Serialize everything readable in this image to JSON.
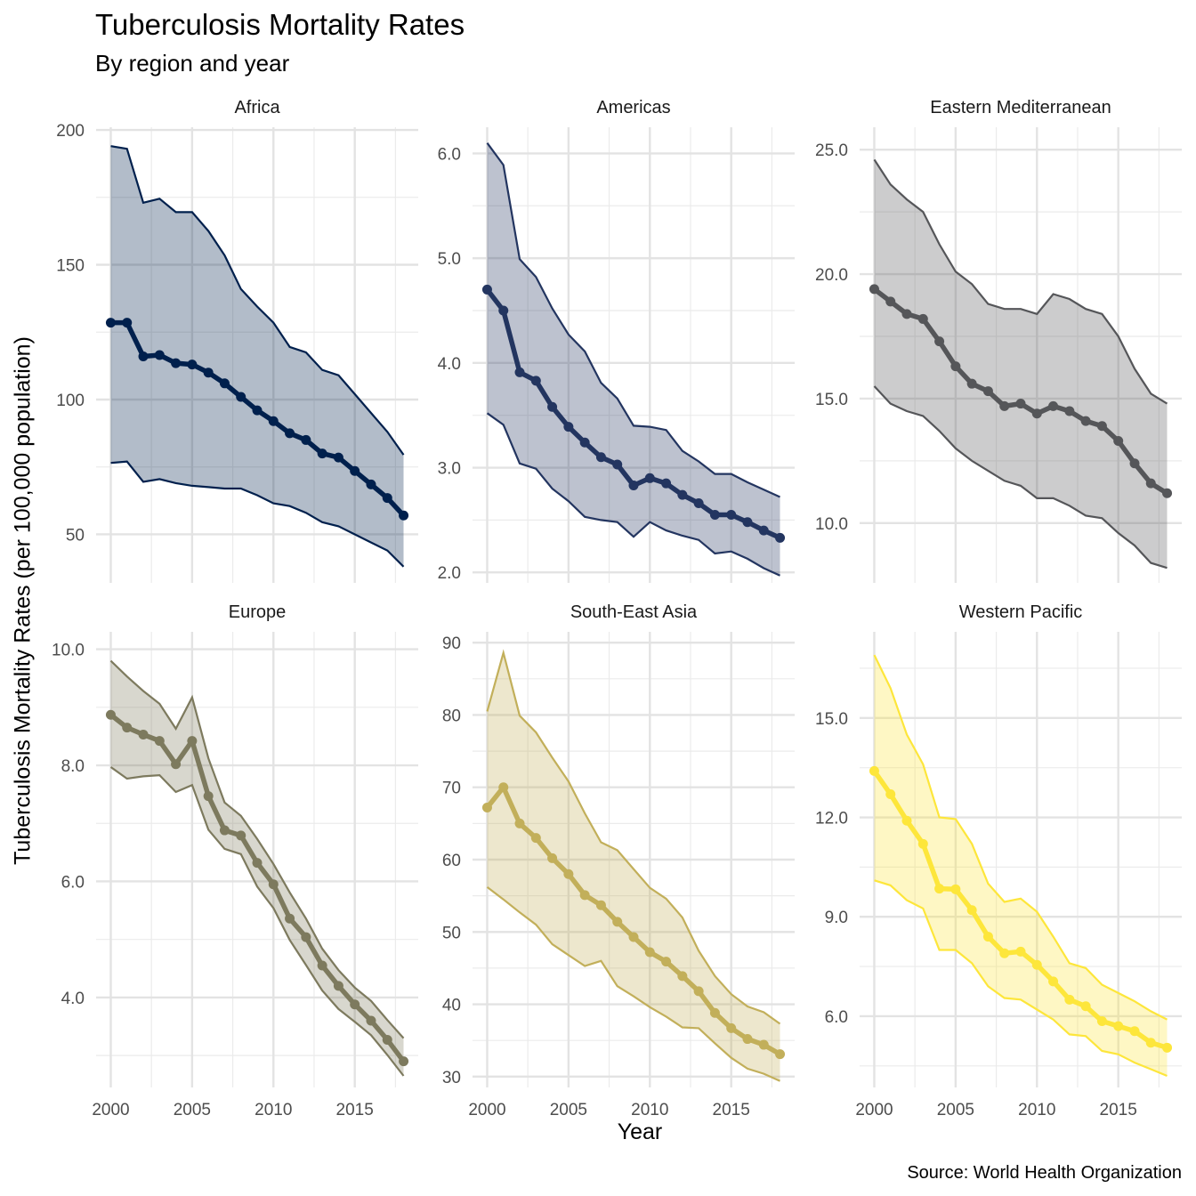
{
  "chart_data": {
    "type": "line",
    "subtype": "faceted-line-with-ribbon",
    "title": "Tuberculosis Mortality Rates",
    "subtitle": "By region and year",
    "xlabel": "Year",
    "ylabel": "Tuberculosis Mortality Rates (per 100,000 population)",
    "caption": "Source: World Health Organization",
    "grid": true,
    "legend": "none",
    "x": [
      2000,
      2001,
      2002,
      2003,
      2004,
      2005,
      2006,
      2007,
      2008,
      2009,
      2010,
      2011,
      2012,
      2013,
      2014,
      2015,
      2016,
      2017,
      2018
    ],
    "x_ticks": [
      "2000",
      "2005",
      "2010",
      "2015"
    ],
    "x_tick_values": [
      2000,
      2005,
      2010,
      2015
    ],
    "facets": [
      {
        "name": "Africa",
        "color": "#00204D",
        "fill": "#B4BBC8",
        "ylim": [
          32,
          201
        ],
        "y_ticks": [
          "50",
          "100",
          "150",
          "200"
        ],
        "y_tick_values": [
          50,
          100,
          150,
          200
        ],
        "y_minor": [
          75,
          125,
          175
        ],
        "series": [
          {
            "name": "mortality",
            "values": [
              128.5,
              128.5,
              116,
              116.5,
              113.5,
              113,
              110,
              106,
              101,
              96,
              92,
              87.5,
              85,
              80,
              78.5,
              73.5,
              68.5,
              63.5,
              57
            ]
          },
          {
            "name": "upper",
            "values": [
              194,
              193,
              173,
              174.5,
              169.5,
              169.5,
              162.5,
              153.5,
              141,
              134.5,
              128.5,
              119.5,
              117.5,
              111,
              109,
              102,
              95,
              88,
              79.5
            ]
          },
          {
            "name": "lower",
            "values": [
              76.5,
              77,
              69.5,
              70.5,
              69,
              68,
              67.5,
              67,
              67,
              64.5,
              61.5,
              60.5,
              58,
              54.5,
              53,
              50,
              47,
              44,
              38
            ]
          }
        ]
      },
      {
        "name": "Americas",
        "color": "#233560",
        "fill": "#BCC2CE",
        "ylim": [
          1.9,
          6.25
        ],
        "y_ticks": [
          "2.0",
          "3.0",
          "4.0",
          "5.0",
          "6.0"
        ],
        "y_tick_values": [
          2,
          3,
          4,
          5,
          6
        ],
        "y_minor": [
          2.5,
          3.5,
          4.5,
          5.5
        ],
        "series": [
          {
            "name": "mortality",
            "values": [
              4.7,
              4.5,
              3.91,
              3.83,
              3.58,
              3.39,
              3.24,
              3.1,
              3.03,
              2.83,
              2.9,
              2.85,
              2.74,
              2.66,
              2.55,
              2.55,
              2.48,
              2.4,
              2.33
            ]
          },
          {
            "name": "upper",
            "values": [
              6.1,
              5.89,
              4.99,
              4.82,
              4.52,
              4.27,
              4.11,
              3.81,
              3.66,
              3.4,
              3.39,
              3.36,
              3.16,
              3.06,
              2.94,
              2.94,
              2.86,
              2.79,
              2.72
            ]
          },
          {
            "name": "lower",
            "values": [
              3.52,
              3.41,
              3.04,
              2.99,
              2.8,
              2.68,
              2.53,
              2.5,
              2.48,
              2.34,
              2.48,
              2.4,
              2.35,
              2.31,
              2.18,
              2.2,
              2.13,
              2.04,
              1.97
            ]
          }
        ]
      },
      {
        "name": "Eastern Mediterranean",
        "color": "#555659",
        "fill": "#CACBCC",
        "ylim": [
          7.6,
          25.9
        ],
        "y_ticks": [
          "10.0",
          "15.0",
          "20.0",
          "25.0"
        ],
        "y_tick_values": [
          10,
          15,
          20,
          25
        ],
        "y_minor": [
          7.5,
          12.5,
          17.5,
          22.5
        ],
        "series": [
          {
            "name": "mortality",
            "values": [
              19.4,
              18.9,
              18.4,
              18.2,
              17.3,
              16.3,
              15.6,
              15.3,
              14.7,
              14.8,
              14.4,
              14.7,
              14.5,
              14.1,
              13.9,
              13.3,
              12.4,
              11.6,
              11.2
            ]
          },
          {
            "name": "upper",
            "values": [
              24.6,
              23.6,
              23.0,
              22.5,
              21.2,
              20.1,
              19.6,
              18.8,
              18.6,
              18.6,
              18.4,
              19.2,
              19.0,
              18.6,
              18.4,
              17.5,
              16.2,
              15.2,
              14.8
            ]
          },
          {
            "name": "lower",
            "values": [
              15.5,
              14.8,
              14.5,
              14.3,
              13.7,
              13.0,
              12.5,
              12.1,
              11.7,
              11.5,
              11.0,
              11.0,
              10.7,
              10.3,
              10.2,
              9.6,
              9.1,
              8.4,
              8.2
            ]
          }
        ]
      },
      {
        "name": "Europe",
        "color": "#7D7A5E",
        "fill": "#DAD8D0",
        "ylim": [
          2.45,
          10.3
        ],
        "y_ticks": [
          "4.0",
          "6.0",
          "8.0",
          "10.0"
        ],
        "y_tick_values": [
          4,
          6,
          8,
          10
        ],
        "y_minor": [
          3,
          5,
          7,
          9
        ],
        "series": [
          {
            "name": "mortality",
            "values": [
              8.87,
              8.65,
              8.53,
              8.42,
              8.02,
              8.42,
              7.47,
              6.88,
              6.79,
              6.32,
              5.95,
              5.36,
              5.04,
              4.55,
              4.2,
              3.88,
              3.6,
              3.27,
              2.9
            ]
          },
          {
            "name": "upper",
            "values": [
              9.8,
              9.53,
              9.28,
              9.06,
              8.63,
              9.17,
              8.12,
              7.36,
              7.13,
              6.73,
              6.3,
              5.81,
              5.36,
              4.84,
              4.47,
              4.17,
              3.94,
              3.61,
              3.3
            ]
          },
          {
            "name": "lower",
            "values": [
              7.97,
              7.77,
              7.81,
              7.83,
              7.54,
              7.66,
              6.89,
              6.56,
              6.47,
              5.91,
              5.54,
              4.99,
              4.56,
              4.12,
              3.8,
              3.58,
              3.35,
              3.01,
              2.65
            ]
          }
        ]
      },
      {
        "name": "South-East Asia",
        "color": "#C2AF5A",
        "fill": "#EBE5CA",
        "ylim": [
          28.5,
          91.5
        ],
        "y_ticks": [
          "30",
          "40",
          "50",
          "60",
          "70",
          "80",
          "90"
        ],
        "y_tick_values": [
          30,
          40,
          50,
          60,
          70,
          80,
          90
        ],
        "y_minor": [
          35,
          45,
          55,
          65,
          75,
          85
        ],
        "series": [
          {
            "name": "mortality",
            "values": [
              67.2,
              70.0,
              65.0,
              63.0,
              60.2,
              58.0,
              55.1,
              53.7,
              51.4,
              49.3,
              47.2,
              45.9,
              43.9,
              41.8,
              38.8,
              36.7,
              35.2,
              34.4,
              33.1
            ]
          },
          {
            "name": "upper",
            "values": [
              80.5,
              88.6,
              79.9,
              77.6,
              74.1,
              70.8,
              66.4,
              62.4,
              61.3,
              58.7,
              56.1,
              54.6,
              52.0,
              47.4,
              43.9,
              41.4,
              39.7,
              38.9,
              37.3
            ]
          },
          {
            "name": "lower",
            "values": [
              56.2,
              54.5,
              52.7,
              51.0,
              48.3,
              46.8,
              45.3,
              46.0,
              42.5,
              41.1,
              39.6,
              38.3,
              36.8,
              36.7,
              34.6,
              32.6,
              31.1,
              30.4,
              29.4
            ]
          }
        ]
      },
      {
        "name": "Western Pacific",
        "color": "#FDE63B",
        "fill": "#FEF6C3",
        "ylim": [
          3.85,
          17.6
        ],
        "y_ticks": [
          "6.0",
          "9.0",
          "12.0",
          "15.0"
        ],
        "y_tick_values": [
          6,
          9,
          12,
          15
        ],
        "y_minor": [
          4.5,
          7.5,
          10.5,
          13.5,
          16.5
        ],
        "series": [
          {
            "name": "mortality",
            "values": [
              13.4,
              12.7,
              11.9,
              11.2,
              9.85,
              9.83,
              9.2,
              8.4,
              7.9,
              7.95,
              7.55,
              7.05,
              6.5,
              6.3,
              5.85,
              5.7,
              5.55,
              5.2,
              5.05
            ]
          },
          {
            "name": "upper",
            "values": [
              16.9,
              15.9,
              14.5,
              13.6,
              12.0,
              11.95,
              11.2,
              10.0,
              9.45,
              9.55,
              9.15,
              8.4,
              7.6,
              7.45,
              6.95,
              6.7,
              6.45,
              6.15,
              5.9
            ]
          },
          {
            "name": "lower",
            "values": [
              10.1,
              9.95,
              9.5,
              9.25,
              8.0,
              8.0,
              7.6,
              6.9,
              6.55,
              6.5,
              6.2,
              5.9,
              5.45,
              5.4,
              4.95,
              4.85,
              4.6,
              4.4,
              4.2
            ]
          }
        ]
      }
    ]
  }
}
